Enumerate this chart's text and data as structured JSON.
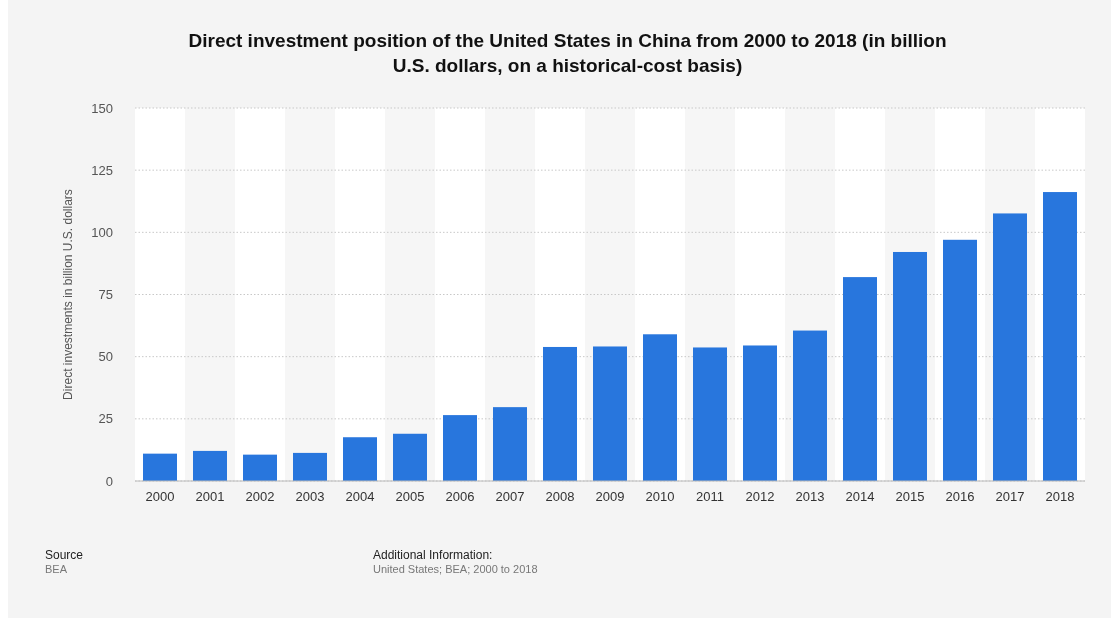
{
  "chart_data": {
    "type": "bar",
    "title": "Direct investment position of the United States in China from 2000 to 2018 (in billion U.S. dollars, on a historical-cost basis)",
    "ylabel": "Direct investments in billion U.S. dollars",
    "categories": [
      "2000",
      "2001",
      "2002",
      "2003",
      "2004",
      "2005",
      "2006",
      "2007",
      "2008",
      "2009",
      "2010",
      "2011",
      "2012",
      "2013",
      "2014",
      "2015",
      "2016",
      "2017",
      "2018"
    ],
    "values": [
      11,
      12.1,
      10.6,
      11.3,
      17.6,
      19,
      26.5,
      29.7,
      53.9,
      54.1,
      59,
      53.7,
      54.5,
      60.5,
      82,
      92.1,
      97,
      107.6,
      116.2
    ],
    "color": "#2876dd",
    "ylim": [
      0,
      150
    ],
    "yticks": [
      0,
      25,
      50,
      75,
      100,
      125,
      150
    ],
    "grid": "y",
    "annotations": [
      "Source",
      "BEA",
      "Additional Information:",
      "United States; BEA; 2000 to 2018"
    ]
  }
}
